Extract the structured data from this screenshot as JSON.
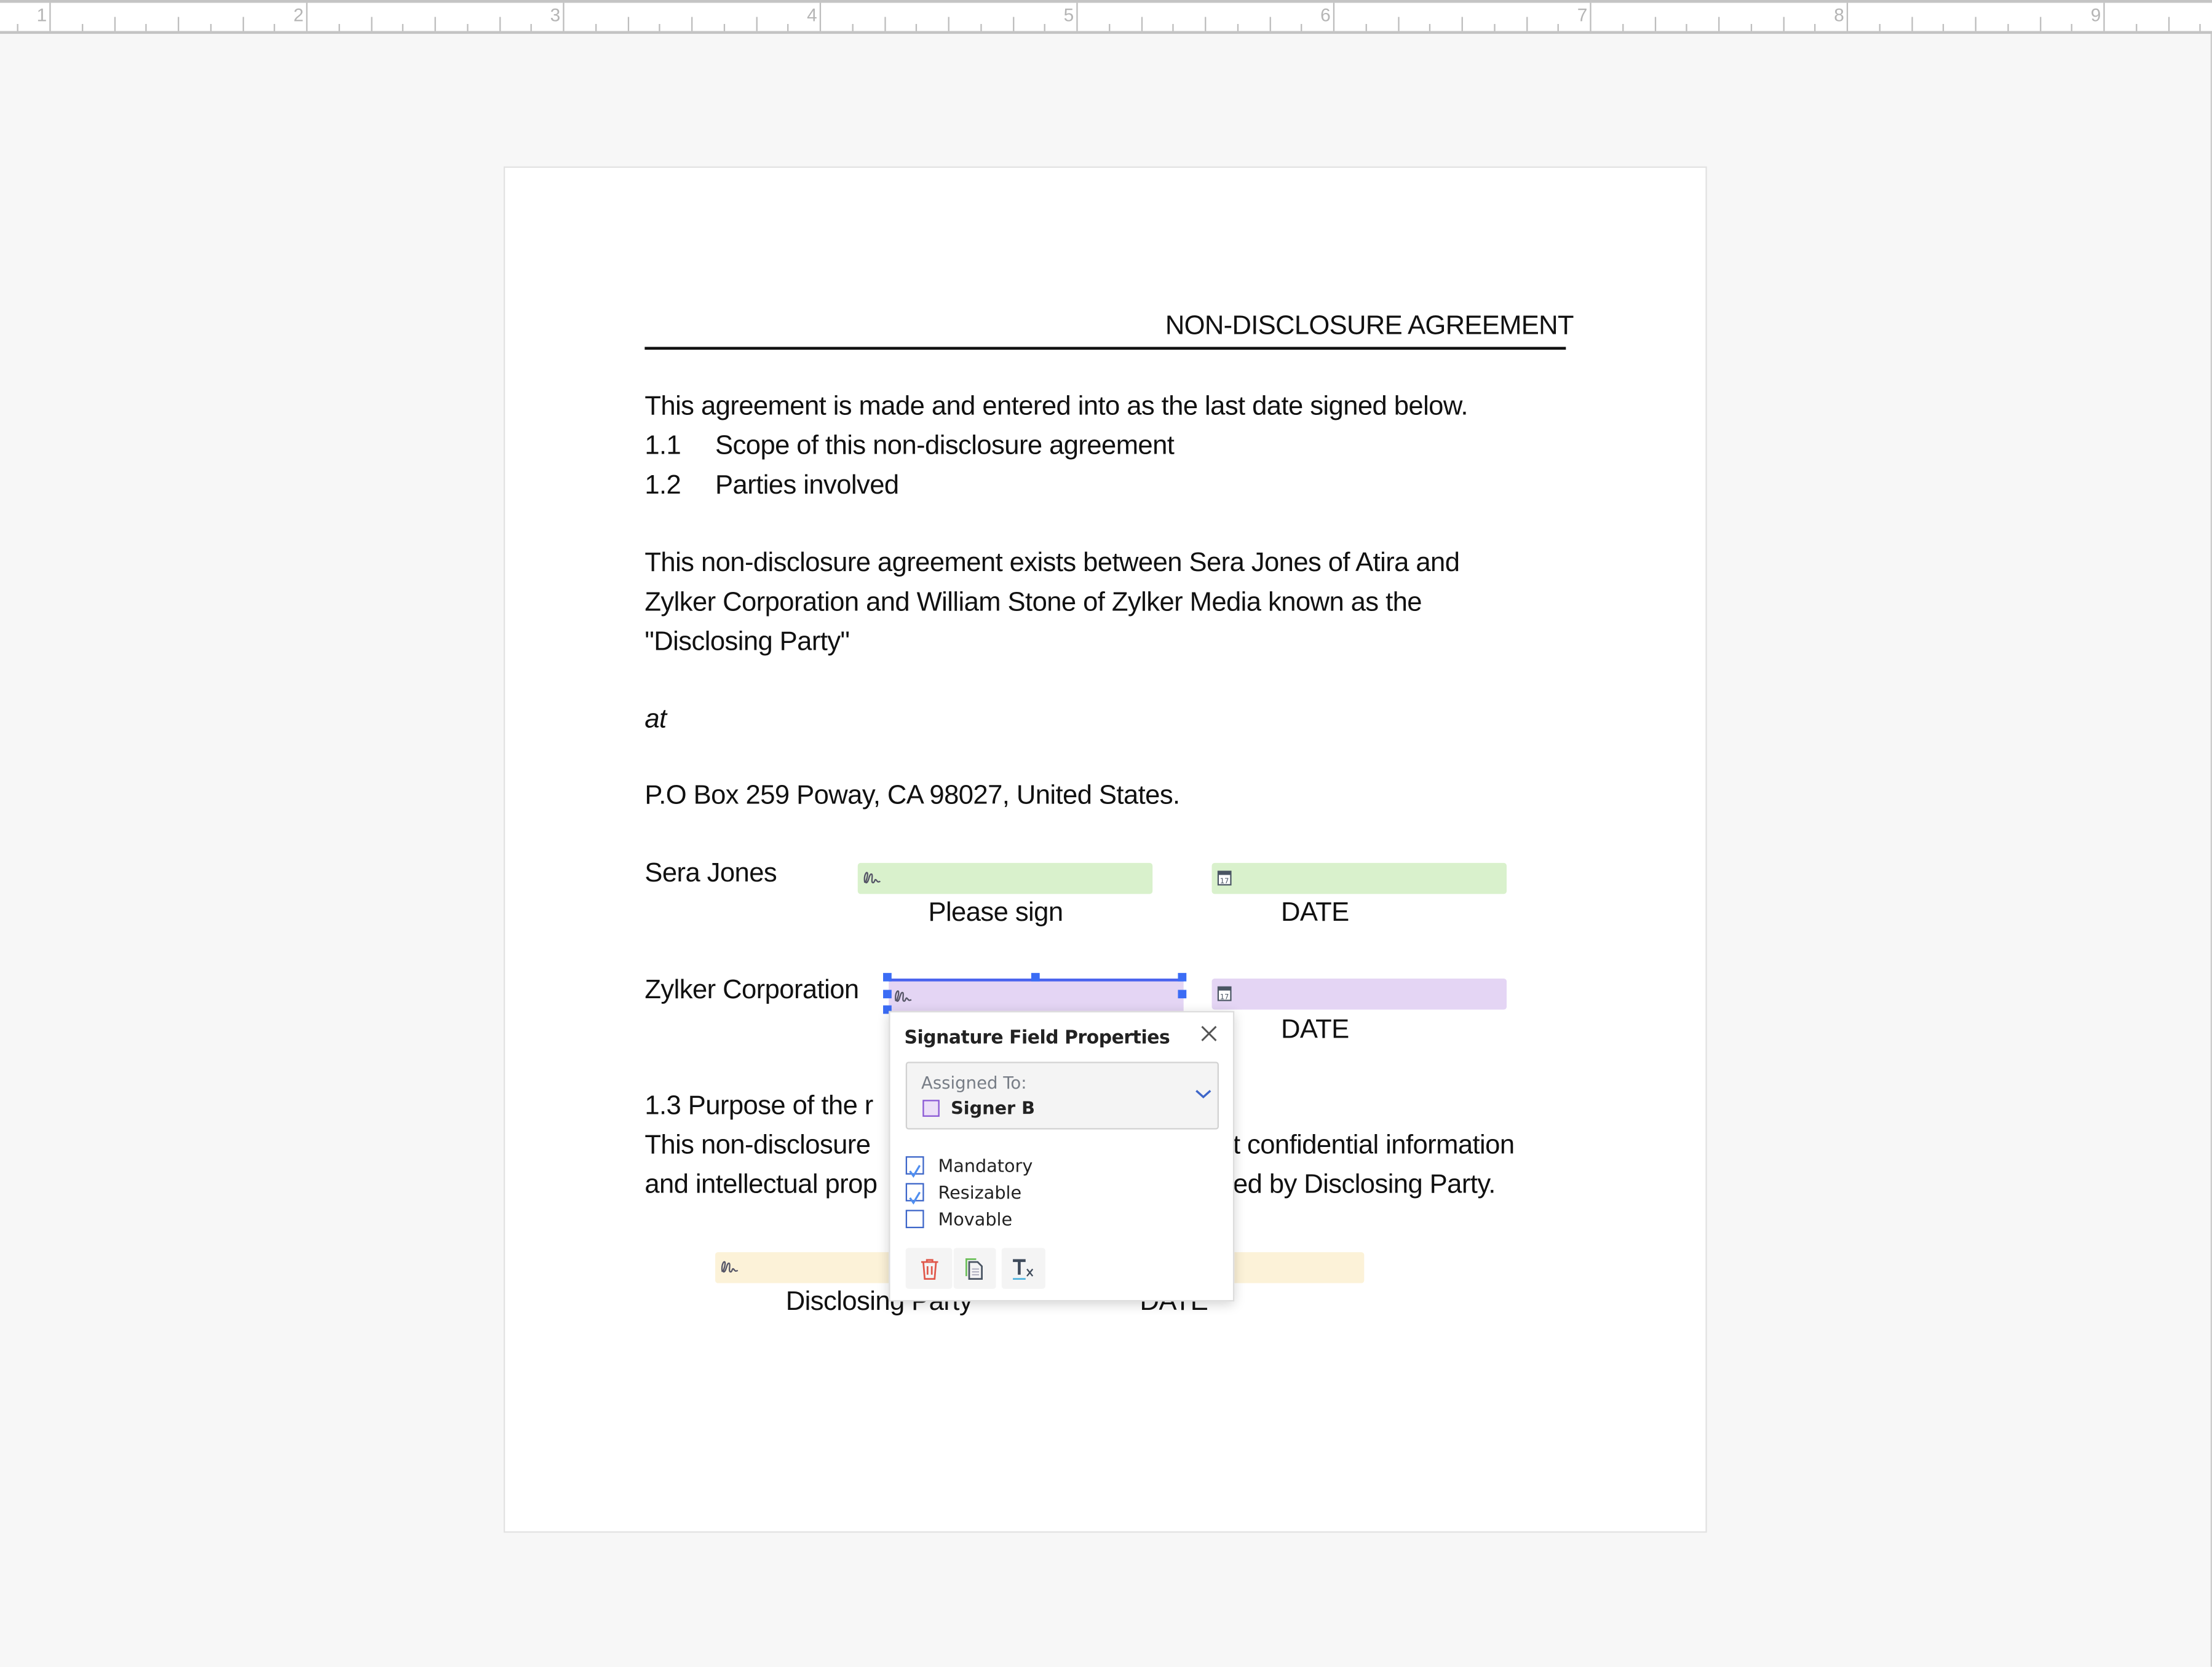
{
  "ruler": {
    "numbers": [
      "1",
      "2",
      "3",
      "4",
      "5",
      "6",
      "7",
      "8",
      "9"
    ]
  },
  "document": {
    "header_title": "NON-DISCLOSURE AGREEMENT",
    "intro": "This agreement is made and entered into as the last date signed below.",
    "sections": [
      {
        "num": "1.1",
        "text": "Scope of this non-disclosure agreement"
      },
      {
        "num": "1.2",
        "text": "Parties involved"
      }
    ],
    "parties_paragraph": [
      "This non-disclosure agreement exists between Sera Jones of Atira and",
      "Zylker Corporation and William Stone of Zylker Media known as the",
      "\"Disclosing Party\""
    ],
    "at": "at",
    "address": "P.O Box 259 Poway, CA 98027, United States.",
    "signers": [
      {
        "name": "Sera Jones",
        "sign_label": "Please sign",
        "date_label": "DATE",
        "color": "#d9f1cc"
      },
      {
        "name": "Zylker Corporation",
        "date_label": "DATE",
        "color": "#e4d5f4"
      }
    ],
    "purpose_fragments": {
      "heading": "1.3 Purpose of the r",
      "line1_left": "This non-disclosure",
      "line1_right": "t confidential information",
      "line2_left": "and intellectual prop",
      "line2_right": "ed by Disclosing Party."
    },
    "disclosing": {
      "sign_label": "Disclosing Party",
      "date_label": "DATE",
      "color": "#fcf2d8"
    }
  },
  "popup": {
    "title": "Signature Field Properties",
    "assigned_label": "Assigned To:",
    "assigned_value": "Signer B",
    "assigned_color": "#8a58d4",
    "options": [
      {
        "label": "Mandatory",
        "checked": true
      },
      {
        "label": "Resizable",
        "checked": true
      },
      {
        "label": "Movable",
        "checked": false
      }
    ],
    "tools": [
      "trash-icon",
      "copy-icon",
      "clear-format-icon"
    ]
  },
  "colors": {
    "selection": "#3b6cf5",
    "checkbox": "#3d66c9"
  }
}
